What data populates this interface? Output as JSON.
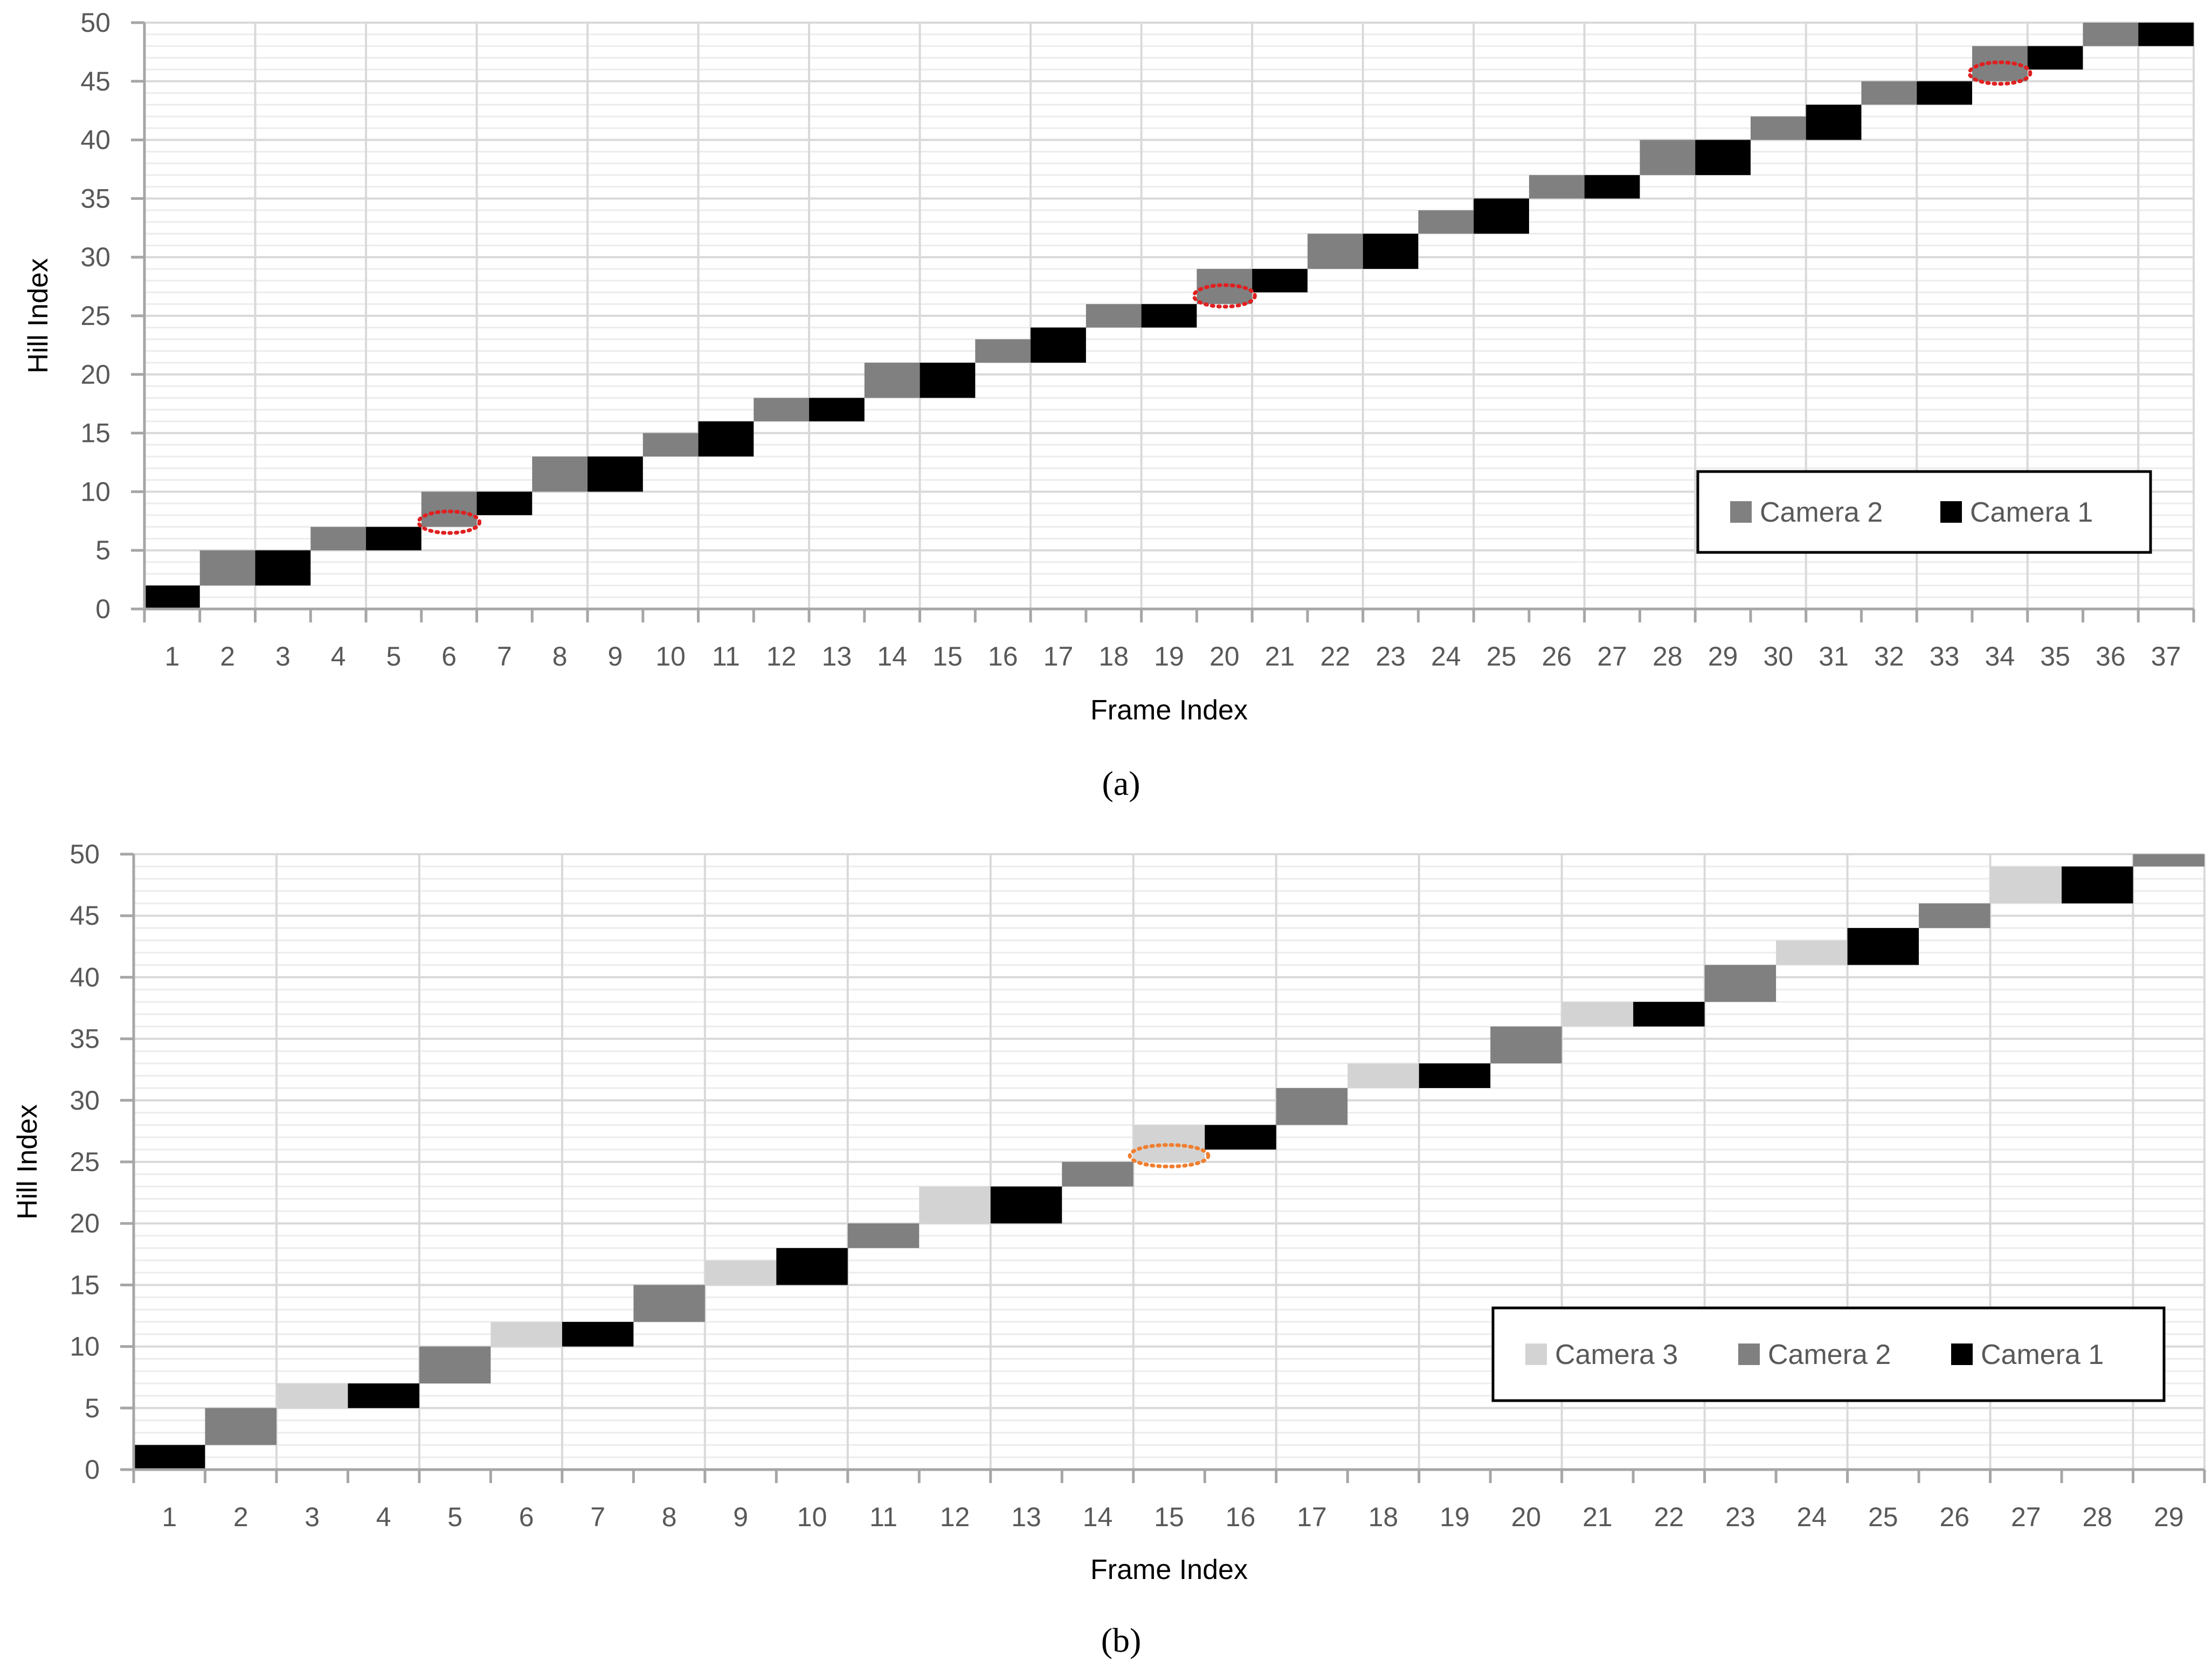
{
  "colors": {
    "camera1": "#000000",
    "camera2": "#808080",
    "camera3": "#d3d3d3",
    "gridline_major": "#d9d9d9",
    "gridline_minor": "#ececec",
    "axis": "#a6a6a6",
    "highlight_a": "#e02020",
    "highlight_b": "#f07f30"
  },
  "chart_data": [
    {
      "type": "bar",
      "panel_label": "a",
      "xlabel": "Frame Index",
      "ylabel": "Hill Index",
      "ylim": [
        0,
        50
      ],
      "yticks": [
        0,
        5,
        10,
        15,
        20,
        25,
        30,
        35,
        40,
        45,
        50
      ],
      "categories": [
        1,
        2,
        3,
        4,
        5,
        6,
        7,
        8,
        9,
        10,
        11,
        12,
        13,
        14,
        15,
        16,
        17,
        18,
        19,
        20,
        21,
        22,
        23,
        24,
        25,
        26,
        27,
        28,
        29,
        30,
        31,
        32,
        33,
        34,
        35,
        36,
        37
      ],
      "legend": [
        "Camera 2",
        "Camera 1"
      ],
      "legend_position": "bottom-right",
      "grid": true,
      "series": [
        {
          "name": "Camera 2",
          "color": "#808080",
          "ranges": [
            {
              "frame": 2,
              "start": 2,
              "end": 5
            },
            {
              "frame": 4,
              "start": 5,
              "end": 7
            },
            {
              "frame": 6,
              "start": 7,
              "end": 10
            },
            {
              "frame": 8,
              "start": 10,
              "end": 13
            },
            {
              "frame": 10,
              "start": 13,
              "end": 15
            },
            {
              "frame": 12,
              "start": 16,
              "end": 18
            },
            {
              "frame": 14,
              "start": 18,
              "end": 21
            },
            {
              "frame": 16,
              "start": 21,
              "end": 23
            },
            {
              "frame": 18,
              "start": 24,
              "end": 26
            },
            {
              "frame": 20,
              "start": 26,
              "end": 29
            },
            {
              "frame": 22,
              "start": 29,
              "end": 32
            },
            {
              "frame": 24,
              "start": 32,
              "end": 34
            },
            {
              "frame": 26,
              "start": 35,
              "end": 37
            },
            {
              "frame": 28,
              "start": 37,
              "end": 40
            },
            {
              "frame": 30,
              "start": 40,
              "end": 42
            },
            {
              "frame": 32,
              "start": 43,
              "end": 45
            },
            {
              "frame": 34,
              "start": 45,
              "end": 48
            },
            {
              "frame": 36,
              "start": 48,
              "end": 50
            }
          ]
        },
        {
          "name": "Camera 1",
          "color": "#000000",
          "ranges": [
            {
              "frame": 1,
              "start": 0,
              "end": 2
            },
            {
              "frame": 3,
              "start": 2,
              "end": 5
            },
            {
              "frame": 5,
              "start": 5,
              "end": 7
            },
            {
              "frame": 7,
              "start": 8,
              "end": 10
            },
            {
              "frame": 9,
              "start": 10,
              "end": 13
            },
            {
              "frame": 11,
              "start": 13,
              "end": 16
            },
            {
              "frame": 13,
              "start": 16,
              "end": 18
            },
            {
              "frame": 15,
              "start": 18,
              "end": 21
            },
            {
              "frame": 17,
              "start": 21,
              "end": 24
            },
            {
              "frame": 19,
              "start": 24,
              "end": 26
            },
            {
              "frame": 21,
              "start": 27,
              "end": 29
            },
            {
              "frame": 23,
              "start": 29,
              "end": 32
            },
            {
              "frame": 25,
              "start": 32,
              "end": 35
            },
            {
              "frame": 27,
              "start": 35,
              "end": 37
            },
            {
              "frame": 29,
              "start": 37,
              "end": 40
            },
            {
              "frame": 31,
              "start": 40,
              "end": 43
            },
            {
              "frame": 33,
              "start": 43,
              "end": 45
            },
            {
              "frame": 35,
              "start": 46,
              "end": 48
            },
            {
              "frame": 37,
              "start": 48,
              "end": 50
            }
          ]
        }
      ],
      "annotations": [
        {
          "shape": "dotted-ellipse",
          "color": "#e02020",
          "frame": 6,
          "hill": 7.4
        },
        {
          "shape": "dotted-ellipse",
          "color": "#e02020",
          "frame": 20,
          "hill": 26.7
        },
        {
          "shape": "dotted-ellipse",
          "color": "#e02020",
          "frame": 34,
          "hill": 45.7
        }
      ]
    },
    {
      "type": "bar",
      "panel_label": "b",
      "xlabel": "Frame Index",
      "ylabel": "Hill Index",
      "ylim": [
        0,
        50
      ],
      "yticks": [
        0,
        5,
        10,
        15,
        20,
        25,
        30,
        35,
        40,
        45,
        50
      ],
      "categories": [
        1,
        2,
        3,
        4,
        5,
        6,
        7,
        8,
        9,
        10,
        11,
        12,
        13,
        14,
        15,
        16,
        17,
        18,
        19,
        20,
        21,
        22,
        23,
        24,
        25,
        26,
        27,
        28,
        29
      ],
      "legend": [
        "Camera 3",
        "Camera 2",
        "Camera 1"
      ],
      "legend_position": "bottom-right",
      "grid": true,
      "series": [
        {
          "name": "Camera 3",
          "color": "#d3d3d3",
          "ranges": [
            {
              "frame": 3,
              "start": 5,
              "end": 7
            },
            {
              "frame": 6,
              "start": 10,
              "end": 12
            },
            {
              "frame": 9,
              "start": 15,
              "end": 17
            },
            {
              "frame": 12,
              "start": 20,
              "end": 23
            },
            {
              "frame": 15,
              "start": 25,
              "end": 28
            },
            {
              "frame": 18,
              "start": 31,
              "end": 33
            },
            {
              "frame": 21,
              "start": 36,
              "end": 38
            },
            {
              "frame": 24,
              "start": 41,
              "end": 43
            },
            {
              "frame": 27,
              "start": 46,
              "end": 49
            }
          ]
        },
        {
          "name": "Camera 2",
          "color": "#808080",
          "ranges": [
            {
              "frame": 2,
              "start": 2,
              "end": 5
            },
            {
              "frame": 5,
              "start": 7,
              "end": 10
            },
            {
              "frame": 8,
              "start": 12,
              "end": 15
            },
            {
              "frame": 11,
              "start": 18,
              "end": 20
            },
            {
              "frame": 14,
              "start": 23,
              "end": 25
            },
            {
              "frame": 17,
              "start": 28,
              "end": 31
            },
            {
              "frame": 20,
              "start": 33,
              "end": 36
            },
            {
              "frame": 23,
              "start": 38,
              "end": 41
            },
            {
              "frame": 26,
              "start": 44,
              "end": 46
            },
            {
              "frame": 29,
              "start": 49,
              "end": 50
            }
          ]
        },
        {
          "name": "Camera 1",
          "color": "#000000",
          "ranges": [
            {
              "frame": 1,
              "start": 0,
              "end": 2
            },
            {
              "frame": 4,
              "start": 5,
              "end": 7
            },
            {
              "frame": 7,
              "start": 10,
              "end": 12
            },
            {
              "frame": 10,
              "start": 15,
              "end": 18
            },
            {
              "frame": 13,
              "start": 20,
              "end": 23
            },
            {
              "frame": 16,
              "start": 26,
              "end": 28
            },
            {
              "frame": 19,
              "start": 31,
              "end": 33
            },
            {
              "frame": 22,
              "start": 36,
              "end": 38
            },
            {
              "frame": 25,
              "start": 41,
              "end": 44
            },
            {
              "frame": 28,
              "start": 46,
              "end": 49
            }
          ]
        }
      ],
      "annotations": [
        {
          "shape": "dotted-ellipse",
          "color": "#f07f30",
          "frame": 15,
          "hill": 25.5
        }
      ]
    }
  ]
}
